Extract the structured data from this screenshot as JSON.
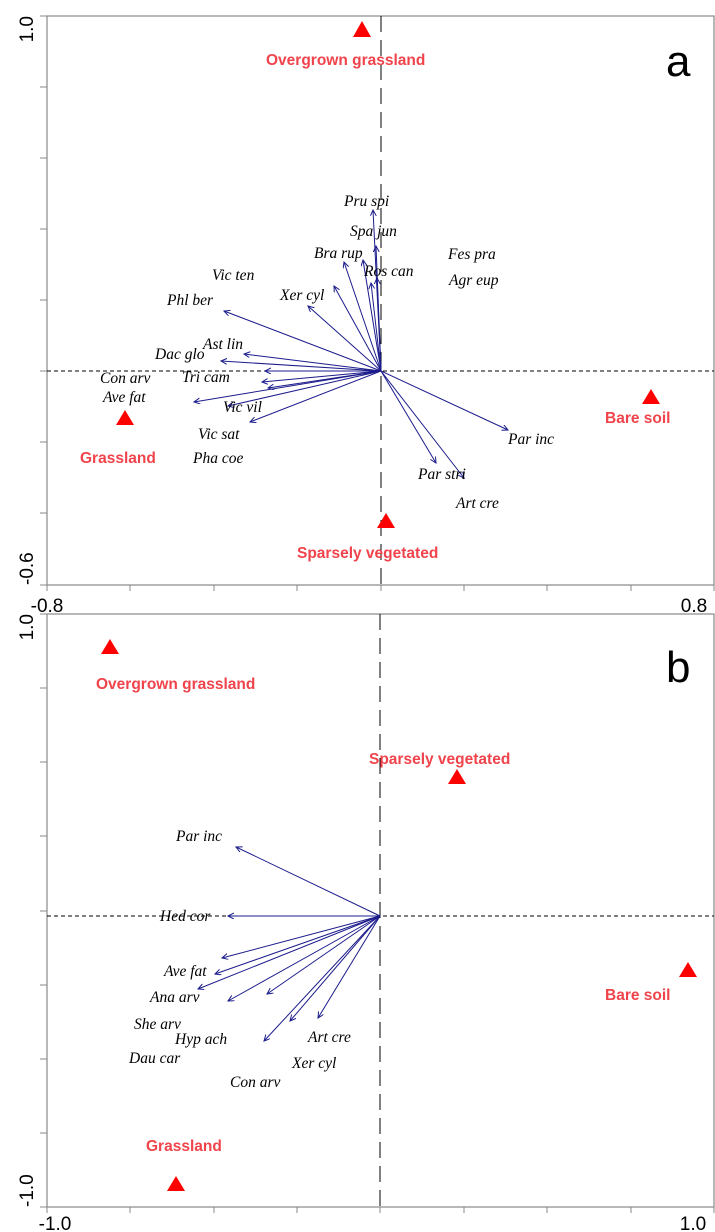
{
  "colors": {
    "arrow": "#1c1c8c",
    "site": "#ff0000",
    "site_label": "#f0434b",
    "frame": "#888888",
    "axis_lines": "#000000"
  },
  "chart_data": [
    {
      "type": "scatter",
      "panel_label": "a",
      "xlim": [
        -0.8,
        0.8
      ],
      "ylim": [
        -0.6,
        1.0
      ],
      "x_tick_labels": [
        "-0.8",
        "0.8"
      ],
      "y_tick_labels": [
        "1.0",
        "-0.6"
      ],
      "species_arrows": [
        {
          "label": "Pru spi",
          "x": -0.02,
          "y": 0.45
        },
        {
          "label": "Spa jun",
          "x": -0.01,
          "y": 0.35
        },
        {
          "label": "Ros can",
          "x": -0.01,
          "y": 0.26
        },
        {
          "label": "Bra rup",
          "x": -0.08,
          "y": 0.31
        },
        {
          "label": "Xer cyl",
          "x": -0.11,
          "y": 0.24
        },
        {
          "label": "Fes pra",
          "x": -0.04,
          "y": 0.31
        },
        {
          "label": "Agr eup",
          "x": -0.02,
          "y": 0.25
        },
        {
          "label": "Vic ten",
          "x": -0.17,
          "y": 0.18
        },
        {
          "label": "Phl ber",
          "x": -0.37,
          "y": 0.17
        },
        {
          "label": "Ast lin",
          "x": -0.32,
          "y": 0.05
        },
        {
          "label": "Dac glo",
          "x": -0.37,
          "y": 0.03
        },
        {
          "label": "Tri cam",
          "x": -0.26,
          "y": 0.0
        },
        {
          "label": "Con arv",
          "x": -0.28,
          "y": -0.03
        },
        {
          "label": "Ave fat",
          "x": -0.44,
          "y": -0.09
        },
        {
          "label": "Vic vil",
          "x": -0.27,
          "y": -0.05
        },
        {
          "label": "Vic sat",
          "x": -0.31,
          "y": -0.14
        },
        {
          "label": "Pha coe",
          "x": -0.36,
          "y": -0.1
        },
        {
          "label": "Par inc",
          "x": 0.3,
          "y": -0.17
        },
        {
          "label": "Par stri",
          "x": 0.2,
          "y": -0.3
        },
        {
          "label": "Art cre",
          "x": 0.13,
          "y": -0.27
        }
      ],
      "sites": [
        {
          "label": "Overgrown grassland",
          "x": -0.05,
          "y": 0.97
        },
        {
          "label": "Grassland",
          "x": -0.61,
          "y": -0.13
        },
        {
          "label": "Sparsely vegetated",
          "x": 0.01,
          "y": -0.42
        },
        {
          "label": "Bare soil",
          "x": 0.65,
          "y": -0.07
        }
      ]
    },
    {
      "type": "scatter",
      "panel_label": "b",
      "xlim": [
        -1.0,
        1.0
      ],
      "ylim": [
        -1.0,
        1.0
      ],
      "x_tick_labels": [
        "-1.0",
        "1.0"
      ],
      "y_tick_labels": [
        "1.0",
        "-1.0"
      ],
      "species_arrows": [
        {
          "label": "Par inc",
          "x": -0.85,
          "y": 0.42
        },
        {
          "label": "Hed cor",
          "x": -0.9,
          "y": 0.0
        },
        {
          "label": "Ave fat",
          "x": -0.94,
          "y": -0.25
        },
        {
          "label": "Ana arv",
          "x": -0.98,
          "y": -0.34
        },
        {
          "label": "She arv",
          "x": -1.08,
          "y": -0.44
        },
        {
          "label": "Hyp ach",
          "x": -0.9,
          "y": -0.51
        },
        {
          "label": "Dau car",
          "x": -0.67,
          "y": -0.46
        },
        {
          "label": "Art cre",
          "x": -0.37,
          "y": -0.6
        },
        {
          "label": "Xer cyl",
          "x": -0.53,
          "y": -0.63
        },
        {
          "label": "Con arv",
          "x": -0.69,
          "y": -0.74
        }
      ],
      "sites": [
        {
          "label": "Overgrown grassland",
          "x": -0.81,
          "y": 0.96
        },
        {
          "label": "Sparsely vegetated",
          "x": 0.45,
          "y": 0.45
        },
        {
          "label": "Bare soil",
          "x": 0.92,
          "y": -0.19
        },
        {
          "label": "Grassland",
          "x": -0.61,
          "y": -0.96
        }
      ]
    }
  ]
}
